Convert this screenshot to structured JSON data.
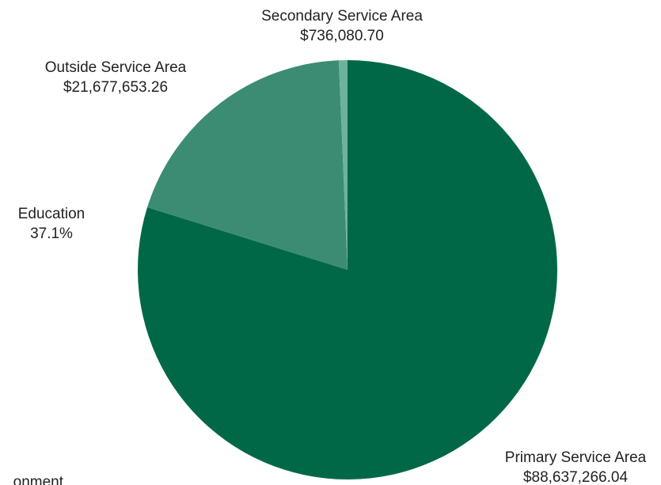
{
  "chart_data": {
    "type": "pie",
    "title": "",
    "start_angle_deg": 0,
    "direction": "clockwise",
    "slices": [
      {
        "name": "Primary Service Area",
        "value": 88637266.04,
        "label": "Primary Service Area",
        "value_label": "$88,637,266.04",
        "color": "#006847"
      },
      {
        "name": "Outside Service Area",
        "value": 21677653.26,
        "label": "Outside Service Area",
        "value_label": "$21,677,653.26",
        "color": "#3c8c74"
      },
      {
        "name": "Secondary Service Area",
        "value": 736080.7,
        "label": "Secondary Service Area",
        "value_label": "$736,080.70",
        "color": "#6cb39d"
      }
    ],
    "annotations": [
      {
        "label": "Education",
        "value_label": "37.1%"
      },
      {
        "label": "onment",
        "value_label": ""
      }
    ]
  }
}
